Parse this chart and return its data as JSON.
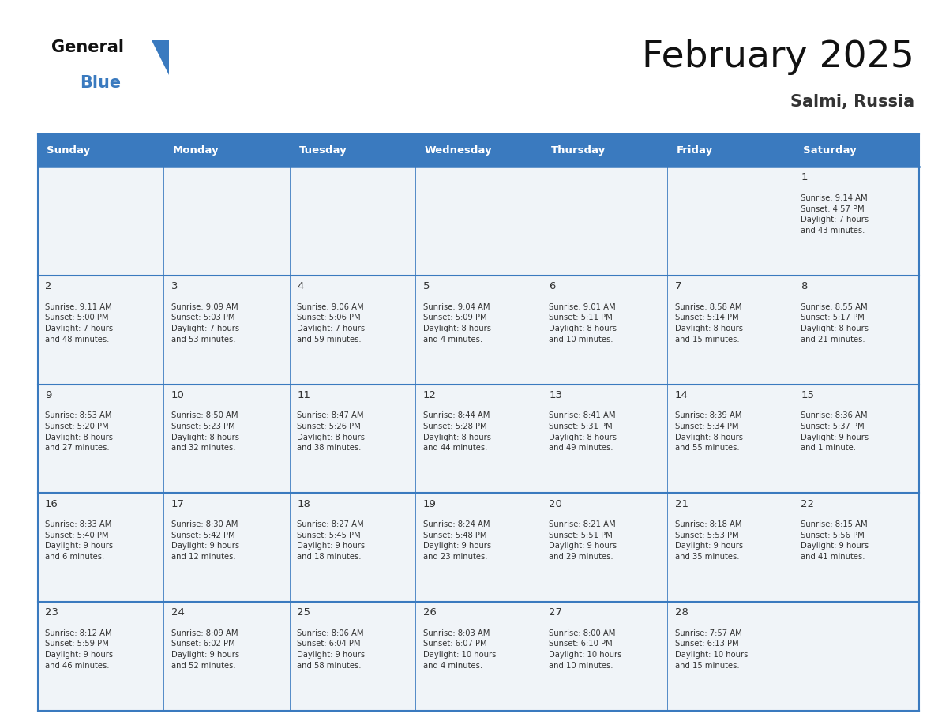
{
  "title": "February 2025",
  "subtitle": "Salmi, Russia",
  "header_bg": "#3a7abf",
  "header_text_color": "#ffffff",
  "cell_bg": "#f0f4f8",
  "border_color": "#3a7abf",
  "separator_color": "#3a7abf",
  "text_color": "#333333",
  "day_number_color": "#333333",
  "days_of_week": [
    "Sunday",
    "Monday",
    "Tuesday",
    "Wednesday",
    "Thursday",
    "Friday",
    "Saturday"
  ],
  "weeks": [
    [
      {
        "day": null,
        "info": null
      },
      {
        "day": null,
        "info": null
      },
      {
        "day": null,
        "info": null
      },
      {
        "day": null,
        "info": null
      },
      {
        "day": null,
        "info": null
      },
      {
        "day": null,
        "info": null
      },
      {
        "day": 1,
        "info": "Sunrise: 9:14 AM\nSunset: 4:57 PM\nDaylight: 7 hours\nand 43 minutes."
      }
    ],
    [
      {
        "day": 2,
        "info": "Sunrise: 9:11 AM\nSunset: 5:00 PM\nDaylight: 7 hours\nand 48 minutes."
      },
      {
        "day": 3,
        "info": "Sunrise: 9:09 AM\nSunset: 5:03 PM\nDaylight: 7 hours\nand 53 minutes."
      },
      {
        "day": 4,
        "info": "Sunrise: 9:06 AM\nSunset: 5:06 PM\nDaylight: 7 hours\nand 59 minutes."
      },
      {
        "day": 5,
        "info": "Sunrise: 9:04 AM\nSunset: 5:09 PM\nDaylight: 8 hours\nand 4 minutes."
      },
      {
        "day": 6,
        "info": "Sunrise: 9:01 AM\nSunset: 5:11 PM\nDaylight: 8 hours\nand 10 minutes."
      },
      {
        "day": 7,
        "info": "Sunrise: 8:58 AM\nSunset: 5:14 PM\nDaylight: 8 hours\nand 15 minutes."
      },
      {
        "day": 8,
        "info": "Sunrise: 8:55 AM\nSunset: 5:17 PM\nDaylight: 8 hours\nand 21 minutes."
      }
    ],
    [
      {
        "day": 9,
        "info": "Sunrise: 8:53 AM\nSunset: 5:20 PM\nDaylight: 8 hours\nand 27 minutes."
      },
      {
        "day": 10,
        "info": "Sunrise: 8:50 AM\nSunset: 5:23 PM\nDaylight: 8 hours\nand 32 minutes."
      },
      {
        "day": 11,
        "info": "Sunrise: 8:47 AM\nSunset: 5:26 PM\nDaylight: 8 hours\nand 38 minutes."
      },
      {
        "day": 12,
        "info": "Sunrise: 8:44 AM\nSunset: 5:28 PM\nDaylight: 8 hours\nand 44 minutes."
      },
      {
        "day": 13,
        "info": "Sunrise: 8:41 AM\nSunset: 5:31 PM\nDaylight: 8 hours\nand 49 minutes."
      },
      {
        "day": 14,
        "info": "Sunrise: 8:39 AM\nSunset: 5:34 PM\nDaylight: 8 hours\nand 55 minutes."
      },
      {
        "day": 15,
        "info": "Sunrise: 8:36 AM\nSunset: 5:37 PM\nDaylight: 9 hours\nand 1 minute."
      }
    ],
    [
      {
        "day": 16,
        "info": "Sunrise: 8:33 AM\nSunset: 5:40 PM\nDaylight: 9 hours\nand 6 minutes."
      },
      {
        "day": 17,
        "info": "Sunrise: 8:30 AM\nSunset: 5:42 PM\nDaylight: 9 hours\nand 12 minutes."
      },
      {
        "day": 18,
        "info": "Sunrise: 8:27 AM\nSunset: 5:45 PM\nDaylight: 9 hours\nand 18 minutes."
      },
      {
        "day": 19,
        "info": "Sunrise: 8:24 AM\nSunset: 5:48 PM\nDaylight: 9 hours\nand 23 minutes."
      },
      {
        "day": 20,
        "info": "Sunrise: 8:21 AM\nSunset: 5:51 PM\nDaylight: 9 hours\nand 29 minutes."
      },
      {
        "day": 21,
        "info": "Sunrise: 8:18 AM\nSunset: 5:53 PM\nDaylight: 9 hours\nand 35 minutes."
      },
      {
        "day": 22,
        "info": "Sunrise: 8:15 AM\nSunset: 5:56 PM\nDaylight: 9 hours\nand 41 minutes."
      }
    ],
    [
      {
        "day": 23,
        "info": "Sunrise: 8:12 AM\nSunset: 5:59 PM\nDaylight: 9 hours\nand 46 minutes."
      },
      {
        "day": 24,
        "info": "Sunrise: 8:09 AM\nSunset: 6:02 PM\nDaylight: 9 hours\nand 52 minutes."
      },
      {
        "day": 25,
        "info": "Sunrise: 8:06 AM\nSunset: 6:04 PM\nDaylight: 9 hours\nand 58 minutes."
      },
      {
        "day": 26,
        "info": "Sunrise: 8:03 AM\nSunset: 6:07 PM\nDaylight: 10 hours\nand 4 minutes."
      },
      {
        "day": 27,
        "info": "Sunrise: 8:00 AM\nSunset: 6:10 PM\nDaylight: 10 hours\nand 10 minutes."
      },
      {
        "day": 28,
        "info": "Sunrise: 7:57 AM\nSunset: 6:13 PM\nDaylight: 10 hours\nand 15 minutes."
      },
      {
        "day": null,
        "info": null
      }
    ]
  ]
}
